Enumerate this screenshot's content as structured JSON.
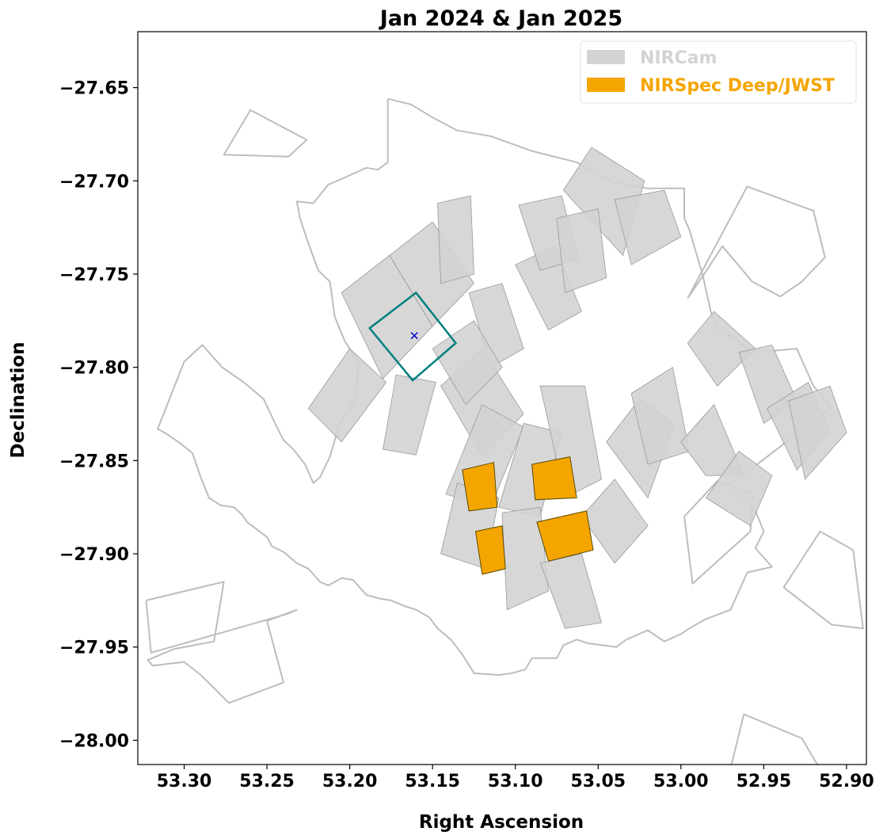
{
  "chart_data": {
    "type": "footprint-map",
    "title": "Jan 2024 & Jan 2025",
    "xlabel": "Right Ascension",
    "ylabel": "Declination",
    "xlim": [
      53.328,
      52.888
    ],
    "ylim": [
      -28.013,
      -27.62
    ],
    "x_inverted": true,
    "xticks": [
      53.3,
      53.25,
      53.2,
      53.15,
      53.1,
      53.05,
      53.0,
      52.95,
      52.9
    ],
    "xtick_labels": [
      "53.30",
      "53.25",
      "53.20",
      "53.15",
      "53.10",
      "53.05",
      "53.00",
      "52.95",
      "52.90"
    ],
    "yticks": [
      -27.65,
      -27.7,
      -27.75,
      -27.8,
      -27.85,
      -27.9,
      -27.95,
      -28.0
    ],
    "ytick_labels": [
      "−27.65",
      "−27.70",
      "−27.75",
      "−27.80",
      "−27.85",
      "−27.90",
      "−27.95",
      "−28.00"
    ],
    "grid": false,
    "legend": {
      "placement": "top-right",
      "entries": [
        {
          "label": "NIRCam",
          "color": "#d3d3d3"
        },
        {
          "label": "NIRSpec Deep/JWST",
          "color": "#f5a500"
        }
      ]
    },
    "colors": {
      "outline": "#bdbdbd",
      "nircam_fill": "#d3d3d3",
      "nircam_edge": "#9a9a9a",
      "nirspec_fill": "#f5a500",
      "nirspec_edge": "#5a4a00",
      "target_box": "#008080",
      "target_marker": "#0000cc"
    },
    "outline_polygons": [
      [
        [
          53.177,
          -27.656
        ],
        [
          53.163,
          -27.659
        ],
        [
          53.15,
          -27.666
        ],
        [
          53.135,
          -27.673
        ],
        [
          53.115,
          -27.676
        ],
        [
          53.09,
          -27.684
        ],
        [
          53.063,
          -27.69
        ],
        [
          53.04,
          -27.701
        ],
        [
          53.02,
          -27.704
        ],
        [
          52.998,
          -27.704
        ],
        [
          52.998,
          -27.72
        ],
        [
          52.995,
          -27.726
        ],
        [
          52.987,
          -27.75
        ],
        [
          52.982,
          -27.77
        ],
        [
          52.978,
          -27.78
        ],
        [
          52.97,
          -27.783
        ],
        [
          52.96,
          -27.79
        ],
        [
          52.955,
          -27.792
        ],
        [
          52.943,
          -27.791
        ],
        [
          52.93,
          -27.79
        ],
        [
          52.925,
          -27.8
        ],
        [
          52.92,
          -27.81
        ],
        [
          52.915,
          -27.815
        ],
        [
          52.91,
          -27.822
        ],
        [
          52.97,
          -27.863
        ],
        [
          52.955,
          -27.877
        ],
        [
          52.95,
          -27.888
        ],
        [
          52.955,
          -27.897
        ],
        [
          52.945,
          -27.907
        ],
        [
          52.96,
          -27.91
        ],
        [
          52.97,
          -27.93
        ],
        [
          52.985,
          -27.935
        ],
        [
          52.995,
          -27.94
        ],
        [
          53.0,
          -27.943
        ],
        [
          53.01,
          -27.947
        ],
        [
          53.02,
          -27.941
        ],
        [
          53.033,
          -27.946
        ],
        [
          53.039,
          -27.95
        ],
        [
          53.056,
          -27.948
        ],
        [
          53.063,
          -27.946
        ],
        [
          53.071,
          -27.949
        ],
        [
          53.075,
          -27.956
        ],
        [
          53.09,
          -27.956
        ],
        [
          53.094,
          -27.962
        ],
        [
          53.102,
          -27.964
        ],
        [
          53.11,
          -27.965
        ],
        [
          53.125,
          -27.964
        ],
        [
          53.132,
          -27.954
        ],
        [
          53.139,
          -27.946
        ],
        [
          53.147,
          -27.94
        ],
        [
          53.152,
          -27.934
        ],
        [
          53.16,
          -27.93
        ],
        [
          53.167,
          -27.928
        ],
        [
          53.175,
          -27.925
        ],
        [
          53.182,
          -27.924
        ],
        [
          53.19,
          -27.922
        ],
        [
          53.198,
          -27.914
        ],
        [
          53.205,
          -27.913
        ],
        [
          53.213,
          -27.917
        ],
        [
          53.218,
          -27.915
        ],
        [
          53.225,
          -27.908
        ],
        [
          53.232,
          -27.905
        ],
        [
          53.24,
          -27.899
        ],
        [
          53.247,
          -27.896
        ],
        [
          53.25,
          -27.891
        ],
        [
          53.262,
          -27.883
        ],
        [
          53.265,
          -27.879
        ],
        [
          53.27,
          -27.875
        ],
        [
          53.278,
          -27.874
        ],
        [
          53.285,
          -27.87
        ],
        [
          53.29,
          -27.859
        ],
        [
          53.295,
          -27.846
        ],
        [
          53.302,
          -27.841
        ],
        [
          53.31,
          -27.836
        ],
        [
          53.316,
          -27.833
        ],
        [
          53.312,
          -27.824
        ],
        [
          53.3,
          -27.797
        ],
        [
          53.289,
          -27.788
        ],
        [
          53.277,
          -27.8
        ],
        [
          53.264,
          -27.808
        ],
        [
          53.252,
          -27.817
        ],
        [
          53.244,
          -27.832
        ],
        [
          53.24,
          -27.839
        ],
        [
          53.234,
          -27.844
        ],
        [
          53.227,
          -27.852
        ],
        [
          53.222,
          -27.862
        ],
        [
          53.218,
          -27.859
        ],
        [
          53.212,
          -27.848
        ],
        [
          53.206,
          -27.83
        ],
        [
          53.196,
          -27.816
        ],
        [
          53.195,
          -27.797
        ],
        [
          53.203,
          -27.786
        ],
        [
          53.209,
          -27.773
        ],
        [
          53.212,
          -27.754
        ],
        [
          53.219,
          -27.748
        ],
        [
          53.226,
          -27.731
        ],
        [
          53.23,
          -27.72
        ],
        [
          53.232,
          -27.711
        ],
        [
          53.222,
          -27.712
        ],
        [
          53.213,
          -27.702
        ],
        [
          53.205,
          -27.699
        ],
        [
          53.195,
          -27.695
        ],
        [
          53.19,
          -27.693
        ],
        [
          53.183,
          -27.694
        ],
        [
          53.177,
          -27.69
        ],
        [
          53.177,
          -27.656
        ]
      ],
      [
        [
          53.237,
          -27.687
        ],
        [
          53.276,
          -27.686
        ],
        [
          53.26,
          -27.662
        ],
        [
          53.226,
          -27.678
        ],
        [
          53.237,
          -27.687
        ]
      ],
      [
        [
          53.323,
          -27.925
        ],
        [
          53.276,
          -27.915
        ],
        [
          53.282,
          -27.947
        ],
        [
          53.306,
          -27.951
        ],
        [
          53.322,
          -27.957
        ],
        [
          53.319,
          -27.96
        ],
        [
          53.3,
          -27.958
        ],
        [
          53.29,
          -27.965
        ],
        [
          53.273,
          -27.98
        ],
        [
          53.24,
          -27.969
        ],
        [
          53.25,
          -27.936
        ],
        [
          53.232,
          -27.93
        ],
        [
          53.237,
          -27.932
        ],
        [
          53.28,
          -27.943
        ],
        [
          53.32,
          -27.953
        ],
        [
          53.323,
          -27.925
        ]
      ],
      [
        [
          52.996,
          -27.763
        ],
        [
          52.986,
          -27.75
        ],
        [
          52.975,
          -27.735
        ],
        [
          52.957,
          -27.754
        ],
        [
          52.94,
          -27.762
        ],
        [
          52.927,
          -27.754
        ],
        [
          52.913,
          -27.741
        ],
        [
          52.92,
          -27.716
        ],
        [
          52.96,
          -27.703
        ],
        [
          52.996,
          -27.763
        ]
      ],
      [
        [
          52.998,
          -27.88
        ],
        [
          52.978,
          -27.861
        ],
        [
          52.957,
          -27.868
        ],
        [
          52.958,
          -27.888
        ],
        [
          52.993,
          -27.916
        ],
        [
          52.998,
          -27.88
        ]
      ],
      [
        [
          52.938,
          -27.918
        ],
        [
          52.916,
          -27.888
        ],
        [
          52.896,
          -27.898
        ],
        [
          52.89,
          -27.94
        ],
        [
          52.909,
          -27.938
        ],
        [
          52.938,
          -27.918
        ]
      ],
      [
        [
          52.97,
          -28.015
        ],
        [
          52.962,
          -27.986
        ],
        [
          52.927,
          -27.999
        ],
        [
          52.917,
          -28.014
        ]
      ]
    ],
    "nircam_tiles": [
      [
        [
          53.205,
          -27.76
        ],
        [
          53.176,
          -27.74
        ],
        [
          53.15,
          -27.778
        ],
        [
          53.18,
          -27.806
        ]
      ],
      [
        [
          53.176,
          -27.74
        ],
        [
          53.15,
          -27.722
        ],
        [
          53.125,
          -27.755
        ],
        [
          53.15,
          -27.778
        ]
      ],
      [
        [
          53.147,
          -27.712
        ],
        [
          53.127,
          -27.708
        ],
        [
          53.125,
          -27.75
        ],
        [
          53.145,
          -27.755
        ]
      ],
      [
        [
          53.2,
          -27.79
        ],
        [
          53.178,
          -27.808
        ],
        [
          53.205,
          -27.84
        ],
        [
          53.225,
          -27.822
        ]
      ],
      [
        [
          53.172,
          -27.804
        ],
        [
          53.148,
          -27.808
        ],
        [
          53.16,
          -27.847
        ],
        [
          53.18,
          -27.844
        ]
      ],
      [
        [
          53.145,
          -27.81
        ],
        [
          53.12,
          -27.79
        ],
        [
          53.095,
          -27.825
        ],
        [
          53.12,
          -27.848
        ]
      ],
      [
        [
          53.128,
          -27.76
        ],
        [
          53.108,
          -27.755
        ],
        [
          53.095,
          -27.79
        ],
        [
          53.115,
          -27.8
        ]
      ],
      [
        [
          53.1,
          -27.745
        ],
        [
          53.076,
          -27.735
        ],
        [
          53.06,
          -27.77
        ],
        [
          53.08,
          -27.78
        ]
      ],
      [
        [
          53.098,
          -27.713
        ],
        [
          53.072,
          -27.708
        ],
        [
          53.062,
          -27.742
        ],
        [
          53.085,
          -27.748
        ]
      ],
      [
        [
          53.071,
          -27.705
        ],
        [
          53.054,
          -27.682
        ],
        [
          53.022,
          -27.7
        ],
        [
          53.035,
          -27.74
        ]
      ],
      [
        [
          53.04,
          -27.71
        ],
        [
          53.01,
          -27.705
        ],
        [
          53.0,
          -27.73
        ],
        [
          53.03,
          -27.745
        ]
      ],
      [
        [
          53.12,
          -27.82
        ],
        [
          53.095,
          -27.832
        ],
        [
          53.115,
          -27.875
        ],
        [
          53.142,
          -27.868
        ]
      ],
      [
        [
          53.095,
          -27.83
        ],
        [
          53.072,
          -27.835
        ],
        [
          53.085,
          -27.88
        ],
        [
          53.11,
          -27.875
        ]
      ],
      [
        [
          53.085,
          -27.81
        ],
        [
          53.058,
          -27.81
        ],
        [
          53.048,
          -27.86
        ],
        [
          53.07,
          -27.87
        ]
      ],
      [
        [
          53.135,
          -27.862
        ],
        [
          53.11,
          -27.87
        ],
        [
          53.118,
          -27.908
        ],
        [
          53.145,
          -27.9
        ]
      ],
      [
        [
          53.108,
          -27.878
        ],
        [
          53.085,
          -27.875
        ],
        [
          53.08,
          -27.92
        ],
        [
          53.105,
          -27.93
        ]
      ],
      [
        [
          53.085,
          -27.905
        ],
        [
          53.06,
          -27.9
        ],
        [
          53.048,
          -27.937
        ],
        [
          53.07,
          -27.94
        ]
      ],
      [
        [
          53.06,
          -27.88
        ],
        [
          53.04,
          -27.86
        ],
        [
          53.02,
          -27.885
        ],
        [
          53.04,
          -27.905
        ]
      ],
      [
        [
          53.045,
          -27.84
        ],
        [
          53.025,
          -27.817
        ],
        [
          53.004,
          -27.83
        ],
        [
          53.02,
          -27.87
        ]
      ],
      [
        [
          53.03,
          -27.814
        ],
        [
          53.005,
          -27.8
        ],
        [
          52.995,
          -27.845
        ],
        [
          53.02,
          -27.852
        ]
      ],
      [
        [
          53.0,
          -27.84
        ],
        [
          52.985,
          -27.858
        ],
        [
          52.962,
          -27.858
        ],
        [
          52.98,
          -27.82
        ]
      ],
      [
        [
          52.996,
          -27.787
        ],
        [
          52.98,
          -27.77
        ],
        [
          52.955,
          -27.79
        ],
        [
          52.978,
          -27.81
        ]
      ],
      [
        [
          52.965,
          -27.792
        ],
        [
          52.945,
          -27.788
        ],
        [
          52.93,
          -27.818
        ],
        [
          52.95,
          -27.83
        ]
      ],
      [
        [
          52.948,
          -27.822
        ],
        [
          52.923,
          -27.808
        ],
        [
          52.91,
          -27.835
        ],
        [
          52.93,
          -27.855
        ]
      ],
      [
        [
          52.935,
          -27.818
        ],
        [
          52.91,
          -27.81
        ],
        [
          52.9,
          -27.835
        ],
        [
          52.925,
          -27.86
        ]
      ],
      [
        [
          52.965,
          -27.845
        ],
        [
          52.945,
          -27.858
        ],
        [
          52.958,
          -27.885
        ],
        [
          52.985,
          -27.87
        ]
      ],
      [
        [
          53.15,
          -27.79
        ],
        [
          53.125,
          -27.775
        ],
        [
          53.108,
          -27.8
        ],
        [
          53.13,
          -27.82
        ]
      ],
      [
        [
          53.075,
          -27.72
        ],
        [
          53.05,
          -27.715
        ],
        [
          53.045,
          -27.752
        ],
        [
          53.07,
          -27.76
        ]
      ]
    ],
    "nirspec_shutters": [
      [
        [
          53.132,
          -27.855
        ],
        [
          53.113,
          -27.851
        ],
        [
          53.111,
          -27.875
        ],
        [
          53.128,
          -27.877
        ]
      ],
      [
        [
          53.09,
          -27.852
        ],
        [
          53.067,
          -27.848
        ],
        [
          53.063,
          -27.87
        ],
        [
          53.088,
          -27.871
        ]
      ],
      [
        [
          53.124,
          -27.888
        ],
        [
          53.108,
          -27.885
        ],
        [
          53.106,
          -27.908
        ],
        [
          53.12,
          -27.911
        ]
      ],
      [
        [
          53.087,
          -27.883
        ],
        [
          53.057,
          -27.877
        ],
        [
          53.053,
          -27.898
        ],
        [
          53.08,
          -27.904
        ]
      ]
    ],
    "target_box": [
      [
        53.16,
        -27.76
      ],
      [
        53.136,
        -27.787
      ],
      [
        53.162,
        -27.807
      ],
      [
        53.188,
        -27.779
      ]
    ],
    "target_marker": {
      "ra": 53.161,
      "dec": -27.783
    }
  }
}
